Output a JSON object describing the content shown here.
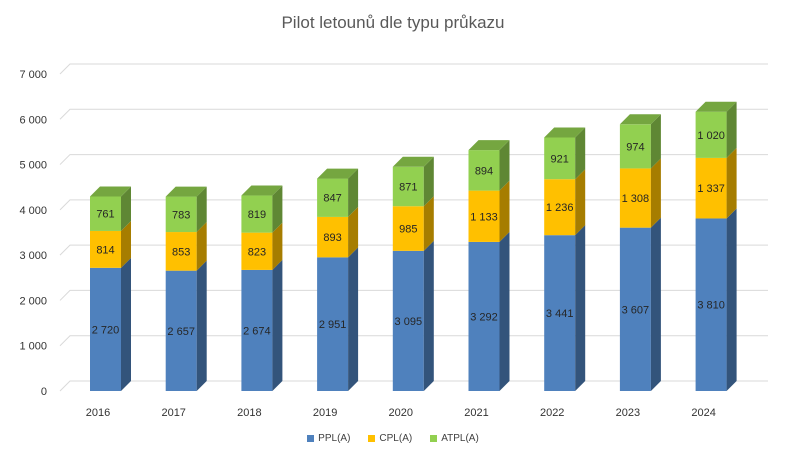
{
  "chart_data": {
    "type": "bar",
    "stacked": true,
    "style": "3d-column",
    "title": "Pilot letounů dle typu průkazu",
    "xlabel": "",
    "ylabel": "",
    "categories": [
      "2016",
      "2017",
      "2018",
      "2019",
      "2020",
      "2021",
      "2022",
      "2023",
      "2024"
    ],
    "series": [
      {
        "name": "PPL(A)",
        "color": "#4f81bd",
        "values": [
          2720,
          2657,
          2674,
          2951,
          3095,
          3292,
          3441,
          3607,
          3810
        ],
        "labels": [
          "2 720",
          "2 657",
          "2 674",
          "2 951",
          "3 095",
          "3 292",
          "3 441",
          "3 607",
          "3 810"
        ]
      },
      {
        "name": "CPL(A)",
        "color": "#ffc000",
        "values": [
          814,
          853,
          823,
          893,
          985,
          1133,
          1236,
          1308,
          1337
        ],
        "labels": [
          "814",
          "853",
          "823",
          "893",
          "985",
          "1 133",
          "1 236",
          "1 308",
          "1 337"
        ]
      },
      {
        "name": "ATPL(A)",
        "color": "#92d050",
        "values": [
          761,
          783,
          819,
          847,
          871,
          894,
          921,
          974,
          1020
        ],
        "labels": [
          "761",
          "783",
          "819",
          "847",
          "871",
          "894",
          "921",
          "974",
          "1 020"
        ]
      }
    ],
    "yticks": [
      0,
      1000,
      2000,
      3000,
      4000,
      5000,
      6000,
      7000
    ],
    "ytick_labels": [
      "0",
      "1 000",
      "2 000",
      "3 000",
      "4 000",
      "5 000",
      "6 000",
      "7 000"
    ],
    "ylim": [
      0,
      7000
    ],
    "grid": true,
    "legend": "bottom"
  }
}
